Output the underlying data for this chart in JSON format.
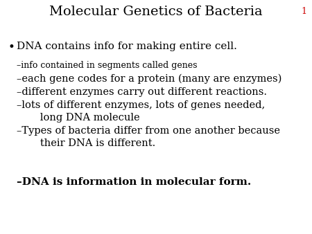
{
  "title": "Molecular Genetics of Bacteria",
  "slide_number": "1",
  "slide_number_color": "#cc0000",
  "background_color": "#ffffff",
  "text_color": "#000000",
  "bullet_point": "DNA contains info for making entire cell.",
  "sub_bullets_line1": [
    "–info contained in segments called genes",
    "–each gene codes for a protein (many are enzymes)",
    "–different enzymes carry out different reactions.",
    "–lots of different enzymes, lots of genes needed,",
    "   long DNA molecule",
    "–Types of bacteria differ from one another because",
    "   their DNA is different."
  ],
  "bold_bullet": "–DNA is information in molecular form.",
  "title_fontsize": 14,
  "bullet_fontsize": 11,
  "sub_bullet_fontsize_small": 9,
  "sub_bullet_fontsize": 10.5,
  "bold_fontsize": 11
}
